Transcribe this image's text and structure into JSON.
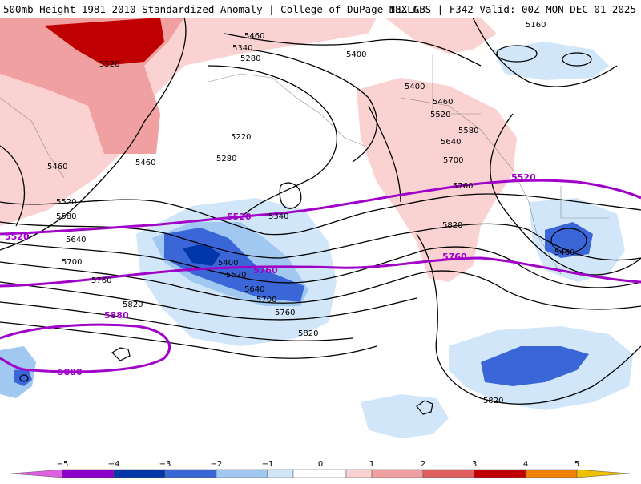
{
  "header": {
    "left": "500mb Height 1981-2010 Standardized Anomaly | College of DuPage NEXLAB",
    "right": "18Z GFS | F342 Valid: 00Z MON DEC 01 2025"
  },
  "colors": {
    "neg5": "#e060e0",
    "neg4": "#8a00c8",
    "neg3": "#0036a8",
    "neg2": "#3b66d8",
    "neg1": "#a0c8f0",
    "neg05": "#d2e6fa",
    "zero": "#ffffff",
    "pos05": "#fad2d2",
    "pos1": "#f0a0a0",
    "pos2": "#e06060",
    "pos3": "#c00000",
    "pos4": "#f08000",
    "pos5": "#f0c000",
    "thick": "#a000c8"
  },
  "colorbar": {
    "ticks": [
      "−5",
      "−4",
      "−3",
      "−2",
      "−1",
      "0",
      "1",
      "2",
      "3",
      "4",
      "5"
    ]
  },
  "contour_labels": {
    "black": [
      "5460",
      "5340",
      "5280",
      "5400",
      "5160",
      "5520",
      "5220",
      "5280",
      "5460",
      "5460",
      "5400",
      "5460",
      "5520",
      "5580",
      "5640",
      "5700",
      "5760",
      "5340",
      "5520",
      "5580",
      "5640",
      "5700",
      "5760",
      "5820",
      "5400",
      "5520",
      "5640",
      "5700",
      "5760",
      "5820",
      "5820",
      "5820",
      "5460"
    ],
    "purple": [
      "5520",
      "5520",
      "5760",
      "5520",
      "5760",
      "5880",
      "5880"
    ]
  }
}
